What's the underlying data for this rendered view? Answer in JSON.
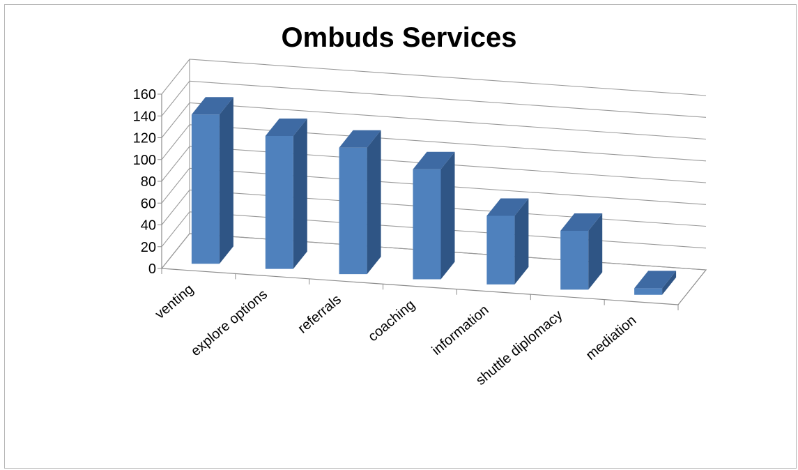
{
  "chart_data": {
    "type": "bar",
    "style": "3d-column",
    "title": "Ombuds Services",
    "categories": [
      "venting",
      "explore options",
      "referrals",
      "coaching",
      "information",
      "shuttle diplomacy",
      "mediation"
    ],
    "values": [
      137,
      122,
      116,
      101,
      63,
      54,
      6
    ],
    "ylim": [
      0,
      160
    ],
    "yticks": [
      "0",
      "20",
      "40",
      "60",
      "80",
      "100",
      "120",
      "140",
      "160"
    ],
    "grid": true,
    "legend": "none",
    "colors": {
      "bar_front": "#4f81bd",
      "bar_side": "#2f5585",
      "bar_top": "#3e6aa3",
      "grid": "#9a9a9a",
      "axis": "#8c8c8c"
    }
  }
}
